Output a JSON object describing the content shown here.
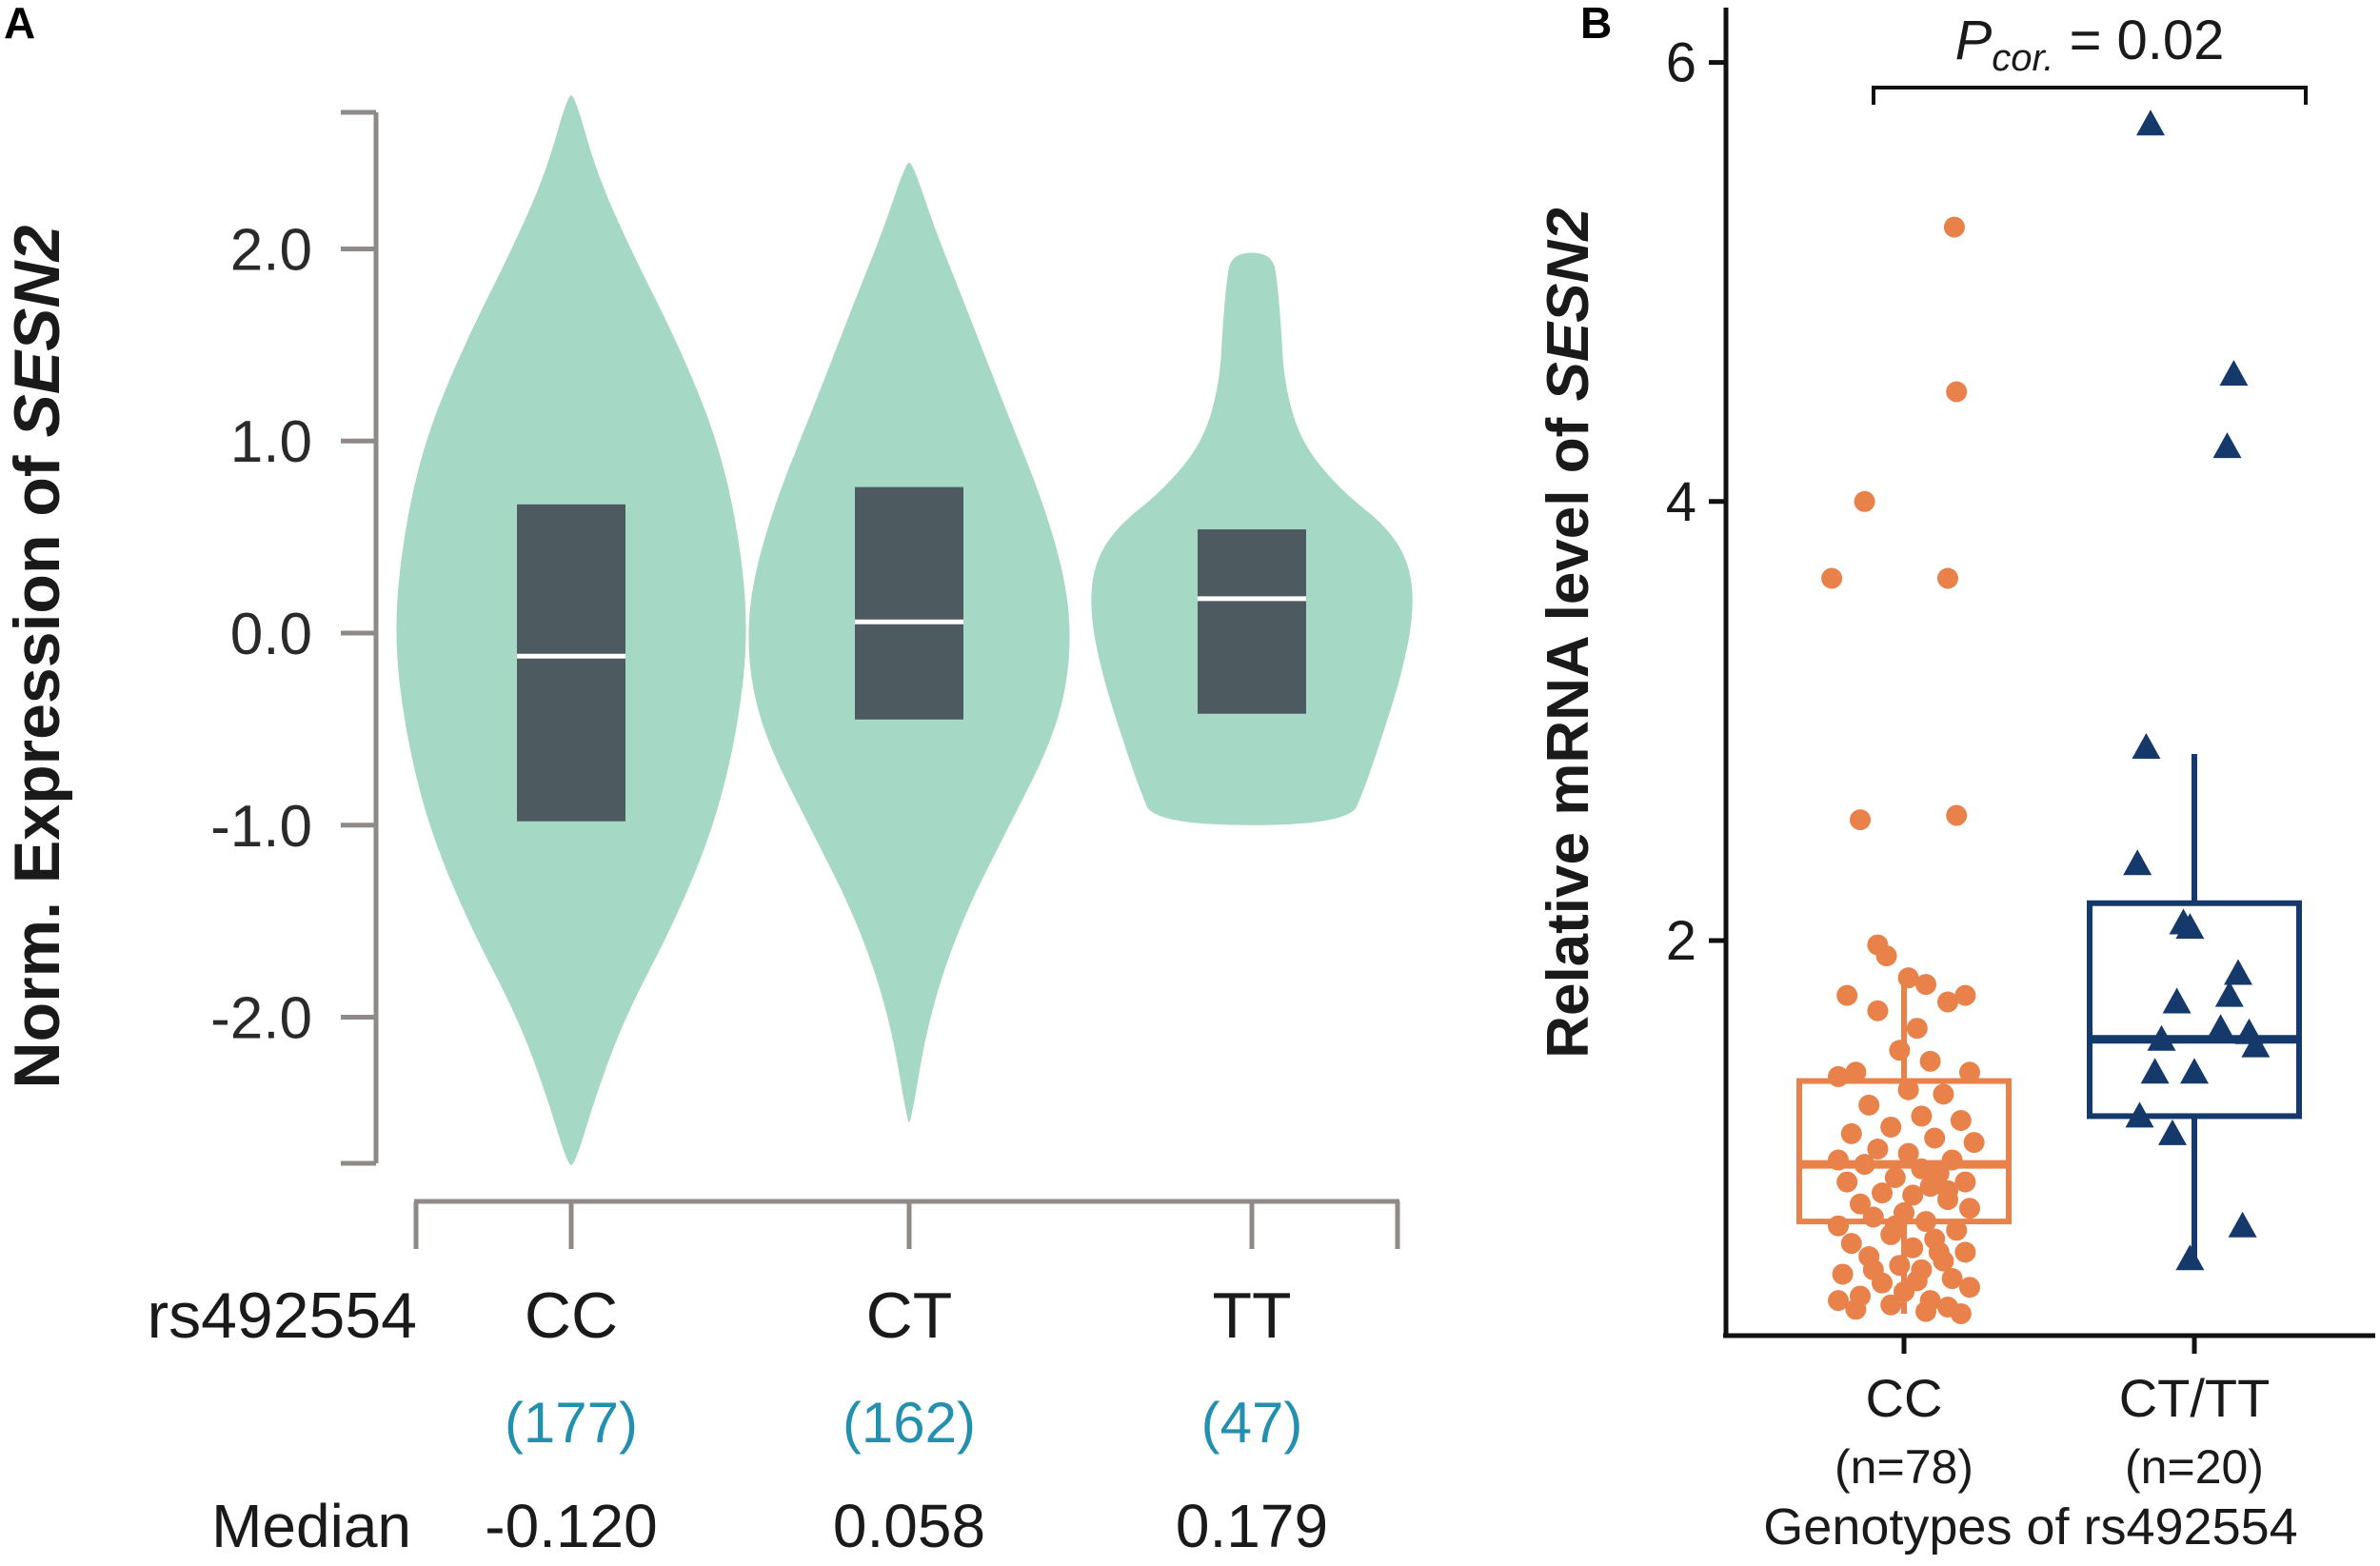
{
  "chart_data": [
    {
      "panel": "A",
      "type": "violin",
      "ylabel_prefix": "Norm. Expression of ",
      "ylabel_gene": "SESN2",
      "x_label": "rs492554",
      "median_label": "Median",
      "yticks": [
        {
          "v": 2.0,
          "label": "2.0"
        },
        {
          "v": 1.0,
          "label": "1.0"
        },
        {
          "v": 0.0,
          "label": "0.0"
        },
        {
          "v": -1.0,
          "label": "-1.0"
        },
        {
          "v": -2.0,
          "label": "-2.0"
        }
      ],
      "ylim": [
        -2.85,
        2.85
      ],
      "colors": {
        "violin": "#a5d8c5",
        "box": "#4d5a60",
        "median": "#ffffff",
        "axis": "#8f8a88",
        "count": "#2390b0"
      },
      "groups": [
        {
          "name": "CC",
          "count": "(177)",
          "median_text": "-0.120",
          "median": -0.12,
          "q1": -0.98,
          "q3": 0.67,
          "min": -2.77,
          "max": 2.8,
          "profile": [
            [
              -2.77,
              0.02
            ],
            [
              -2.4,
              0.14
            ],
            [
              -2.0,
              0.3
            ],
            [
              -1.5,
              0.58
            ],
            [
              -1.0,
              0.8
            ],
            [
              -0.5,
              0.93
            ],
            [
              0.0,
              0.99
            ],
            [
              0.5,
              0.94
            ],
            [
              1.0,
              0.82
            ],
            [
              1.5,
              0.6
            ],
            [
              2.0,
              0.33
            ],
            [
              2.4,
              0.14
            ],
            [
              2.8,
              0.02
            ]
          ]
        },
        {
          "name": "CT",
          "count": "(162)",
          "median_text": "0.058",
          "median": 0.058,
          "q1": -0.45,
          "q3": 0.76,
          "min": -2.55,
          "max": 2.45,
          "profile": [
            [
              -2.55,
              0.01
            ],
            [
              -2.0,
              0.12
            ],
            [
              -1.5,
              0.32
            ],
            [
              -1.0,
              0.62
            ],
            [
              -0.6,
              0.86
            ],
            [
              -0.3,
              0.97
            ],
            [
              0.0,
              1.0
            ],
            [
              0.3,
              0.96
            ],
            [
              0.7,
              0.82
            ],
            [
              1.2,
              0.58
            ],
            [
              1.7,
              0.35
            ],
            [
              2.1,
              0.16
            ],
            [
              2.45,
              0.02
            ]
          ]
        },
        {
          "name": "TT",
          "count": "(47)",
          "median_text": "0.179",
          "median": 0.179,
          "q1": -0.42,
          "q3": 0.54,
          "min": -1.0,
          "max": 1.98,
          "profile": [
            [
              -1.0,
              0.6
            ],
            [
              -0.8,
              0.7
            ],
            [
              -0.5,
              0.82
            ],
            [
              -0.2,
              0.93
            ],
            [
              0.1,
              1.0
            ],
            [
              0.35,
              0.98
            ],
            [
              0.55,
              0.84
            ],
            [
              0.75,
              0.54
            ],
            [
              1.0,
              0.3
            ],
            [
              1.3,
              0.2
            ],
            [
              1.6,
              0.18
            ],
            [
              1.8,
              0.16
            ],
            [
              1.98,
              0.13
            ]
          ]
        }
      ]
    },
    {
      "panel": "B",
      "type": "box+scatter",
      "ylabel_prefix": "Relative mRNA level of ",
      "ylabel_gene": "SESN2",
      "xlabel": "Genotypes of rs492554",
      "ylim": [
        0.2,
        6.25
      ],
      "yticks": [
        {
          "v": 2,
          "label": "2"
        },
        {
          "v": 4,
          "label": "4"
        },
        {
          "v": 6,
          "label": "6"
        }
      ],
      "annotation": {
        "p_main": "P",
        "p_sub": "cor.",
        "p_value": " = 0.02"
      },
      "groups": [
        {
          "name": "CC",
          "n_label": "(n=78)",
          "color": "#e8824a",
          "marker": "circle",
          "q1": 0.72,
          "median": 0.98,
          "q3": 1.36,
          "whisker_low": 0.3,
          "whisker_high": 1.85,
          "points": [
            [
              0.23,
              5.25
            ],
            [
              0.24,
              4.5
            ],
            [
              -0.18,
              4.0
            ],
            [
              -0.33,
              3.65
            ],
            [
              0.2,
              3.65
            ],
            [
              0.24,
              2.57
            ],
            [
              -0.2,
              2.55
            ],
            [
              -0.12,
              1.98
            ],
            [
              -0.08,
              1.93
            ],
            [
              0.02,
              1.83
            ],
            [
              0.1,
              1.8
            ],
            [
              -0.26,
              1.75
            ],
            [
              0.2,
              1.72
            ],
            [
              0.28,
              1.75
            ],
            [
              -0.12,
              1.68
            ],
            [
              0.06,
              1.6
            ],
            [
              -0.02,
              1.5
            ],
            [
              0.12,
              1.45
            ],
            [
              -0.22,
              1.4
            ],
            [
              0.3,
              1.4
            ],
            [
              -0.3,
              1.38
            ],
            [
              0.02,
              1.32
            ],
            [
              0.18,
              1.3
            ],
            [
              -0.16,
              1.25
            ],
            [
              0.08,
              1.2
            ],
            [
              0.26,
              1.18
            ],
            [
              -0.06,
              1.15
            ],
            [
              -0.24,
              1.12
            ],
            [
              0.14,
              1.1
            ],
            [
              0.32,
              1.08
            ],
            [
              -0.12,
              1.05
            ],
            [
              0.02,
              1.03
            ],
            [
              0.22,
              1.0
            ],
            [
              -0.3,
              1.0
            ],
            [
              -0.18,
              0.98
            ],
            [
              0.08,
              0.96
            ],
            [
              0.16,
              0.94
            ],
            [
              -0.04,
              0.92
            ],
            [
              0.28,
              0.9
            ],
            [
              -0.26,
              0.9
            ],
            [
              0.12,
              0.88
            ],
            [
              -0.1,
              0.85
            ],
            [
              0.04,
              0.84
            ],
            [
              0.2,
              0.82
            ],
            [
              -0.2,
              0.8
            ],
            [
              0.3,
              0.78
            ],
            [
              0.0,
              0.76
            ],
            [
              -0.14,
              0.74
            ],
            [
              0.1,
              0.72
            ],
            [
              -0.3,
              0.7
            ],
            [
              0.24,
              0.68
            ],
            [
              -0.06,
              0.66
            ],
            [
              0.14,
              0.64
            ],
            [
              -0.24,
              0.62
            ],
            [
              0.04,
              0.6
            ],
            [
              0.28,
              0.58
            ],
            [
              -0.16,
              0.56
            ],
            [
              0.18,
              0.54
            ],
            [
              -0.02,
              0.52
            ],
            [
              0.08,
              0.5
            ],
            [
              -0.28,
              0.48
            ],
            [
              0.22,
              0.46
            ],
            [
              -0.1,
              0.44
            ],
            [
              0.3,
              0.42
            ],
            [
              0.0,
              0.4
            ],
            [
              -0.2,
              0.38
            ],
            [
              0.12,
              0.36
            ],
            [
              -0.06,
              0.34
            ],
            [
              0.2,
              0.33
            ],
            [
              -0.22,
              0.32
            ],
            [
              0.1,
              0.31
            ],
            [
              0.26,
              0.3
            ],
            [
              -0.3,
              0.36
            ],
            [
              0.06,
              0.45
            ],
            [
              -0.14,
              0.5
            ],
            [
              0.16,
              0.58
            ],
            [
              -0.04,
              0.7
            ],
            [
              0.2,
              0.86
            ]
          ]
        },
        {
          "name": "CT/TT",
          "n_label": "(n=20)",
          "color": "#16396b",
          "marker": "triangle",
          "q1": 1.2,
          "median": 1.55,
          "q3": 2.17,
          "whisker_low": 0.5,
          "whisker_high": 2.85,
          "points": [
            [
              -0.2,
              5.72
            ],
            [
              0.18,
              4.58
            ],
            [
              0.15,
              4.25
            ],
            [
              -0.22,
              2.88
            ],
            [
              -0.26,
              2.35
            ],
            [
              -0.05,
              2.08
            ],
            [
              -0.02,
              2.06
            ],
            [
              0.2,
              1.85
            ],
            [
              0.16,
              1.75
            ],
            [
              -0.08,
              1.72
            ],
            [
              0.12,
              1.6
            ],
            [
              0.25,
              1.58
            ],
            [
              -0.15,
              1.55
            ],
            [
              0.28,
              1.52
            ],
            [
              -0.18,
              1.4
            ],
            [
              0.0,
              1.4
            ],
            [
              -0.25,
              1.2
            ],
            [
              -0.1,
              1.12
            ],
            [
              0.22,
              0.7
            ],
            [
              -0.02,
              0.55
            ]
          ]
        }
      ]
    }
  ]
}
